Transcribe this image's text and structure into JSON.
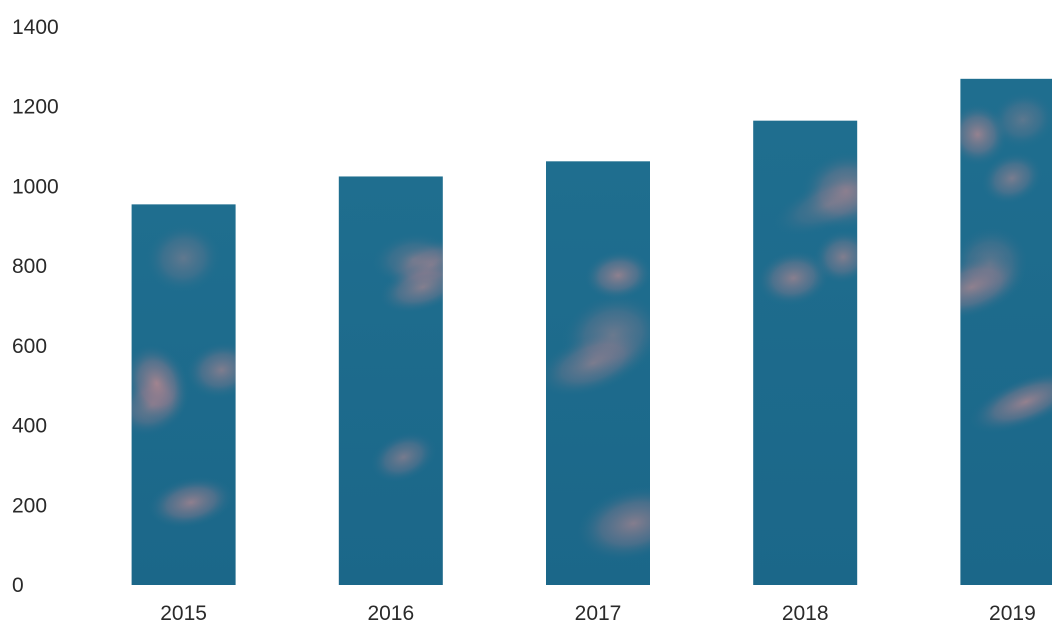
{
  "chart_data": {
    "type": "bar",
    "title": "",
    "xlabel": "",
    "ylabel": "",
    "categories": [
      "2015",
      "2016",
      "2017",
      "2018",
      "2019"
    ],
    "values": [
      955,
      1025,
      1063,
      1165,
      1270
    ],
    "ylim": [
      0,
      1400
    ],
    "yticks": [
      0,
      200,
      400,
      600,
      800,
      1000,
      1200,
      1400
    ],
    "ytick_labels": [
      "0",
      "200",
      "400",
      "600",
      "800",
      "1000",
      "1200",
      "1400"
    ],
    "grid": false,
    "legend": "none",
    "colors": {
      "bar": "#1f6e8f",
      "bar_highlight": "#c4868c",
      "text": "#2a2a2a"
    }
  }
}
